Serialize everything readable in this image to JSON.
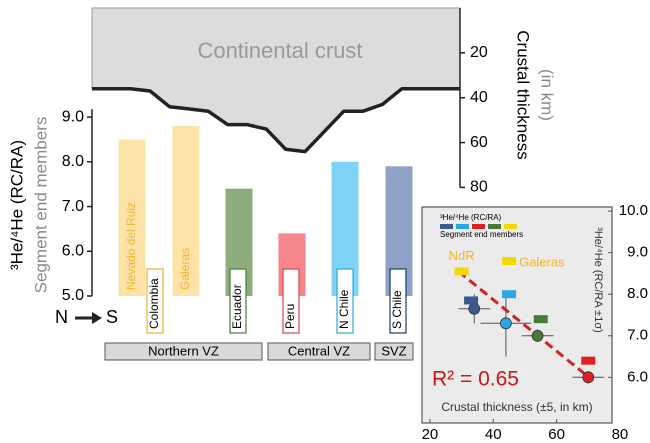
{
  "chart_data": [
    {
      "type": "bar",
      "annotation": "Continental crust",
      "y_label": "³He/⁴He (RC/RA)",
      "y_sublabel": "Segment end members",
      "y2_label": "Crustal thickness",
      "y2_sublabel": "(in km)",
      "direction": [
        "N",
        "S"
      ],
      "categories": [
        "Nevado del Ruiz",
        "Galeras",
        null,
        null,
        null,
        null
      ],
      "values": [
        8.5,
        8.8,
        7.4,
        6.4,
        8.0,
        7.9
      ],
      "colors": [
        "#fde3a7",
        "#fde3a7",
        "#8ead7c",
        "#f7868c",
        "#7fd3f5",
        "#8ea2c7"
      ],
      "label_color": "#f2b62e",
      "segments": [
        {
          "label": "Colombia",
          "color": "#f0b030"
        },
        {
          "label": "Ecuador",
          "color": "#4a7a3a"
        },
        {
          "label": "Peru",
          "color": "#e04050"
        },
        {
          "label": "N Chile",
          "color": "#29a8e0"
        },
        {
          "label": "S Chile",
          "color": "#1f3a6a"
        }
      ],
      "regions": [
        "Northern VZ",
        "Central VZ",
        "SVZ"
      ],
      "ylim": [
        5,
        11.44
      ],
      "yticks": [
        {
          "value": 5,
          "label": "5.0"
        },
        {
          "value": 6,
          "label": "6.0"
        },
        {
          "value": 7,
          "label": "7.0"
        },
        {
          "value": 8,
          "label": "8.0"
        },
        {
          "value": 9,
          "label": "9.0"
        }
      ],
      "y2lim": [
        128.4,
        0
      ],
      "y2ticks": [
        20,
        40,
        60,
        80
      ],
      "crust_profile": {
        "axis": "y2",
        "color": "#222222",
        "fill": "#dcdcdc",
        "values": [
          36,
          36,
          36,
          37,
          44,
          45,
          46,
          52,
          52,
          54,
          63,
          64,
          55,
          46,
          46,
          43,
          36,
          36,
          36,
          36
        ]
      }
    },
    {
      "type": "scatter",
      "x_label": "Crustal thickness (±5, in km)",
      "y_label": "³He/⁴He (RC/RA ±1σ)",
      "legend_title": "³He/⁴He (RC/RA)",
      "legend_colors": [
        "#3a5a8c",
        "#29a8e0",
        "#e02020",
        "#4a7a3a",
        "#f5d800"
      ],
      "xlim": [
        17.5,
        77.5
      ],
      "ylim": [
        4.9,
        10.1
      ],
      "xticks": [
        20,
        40,
        60,
        80
      ],
      "yticks": [
        {
          "value": 6,
          "label": "6.0"
        },
        {
          "value": 7,
          "label": "7.0"
        },
        {
          "value": 8,
          "label": "8.0"
        },
        {
          "value": 9,
          "label": "9.0"
        },
        {
          "value": 10,
          "label": "10.0"
        }
      ],
      "series": [
        {
          "marker": "circle",
          "x": [
            34,
            44,
            54,
            70
          ],
          "values": [
            7.65,
            7.3,
            7.0,
            6.0
          ],
          "x_err": [
            5,
            8,
            5,
            5
          ],
          "y_err": [
            0.35,
            0.8,
            0.15,
            0.15
          ],
          "colors": [
            "#3a5a8c",
            "#29a8e0",
            "#4a7a3a",
            "#e02020"
          ]
        },
        {
          "name": "Segment end members",
          "marker": "square",
          "x": [
            30,
            45,
            33,
            45,
            55,
            70
          ],
          "values": [
            8.55,
            8.8,
            7.85,
            8.0,
            7.4,
            6.4
          ],
          "colors": [
            "#f5d800",
            "#f5d800",
            "#3a5a8c",
            "#29a8e0",
            "#4a7a3a",
            "#e02020"
          ],
          "point_labels": [
            "NdR",
            "Galeras",
            null,
            null,
            null,
            null
          ],
          "label_color": "#f2b62e"
        }
      ],
      "fit": {
        "x": [
          29,
          71
        ],
        "values": [
          8.55,
          5.95
        ],
        "color": "#d42020"
      },
      "annotation": "R² = 0.65",
      "annotation_color": "#c81818"
    }
  ]
}
